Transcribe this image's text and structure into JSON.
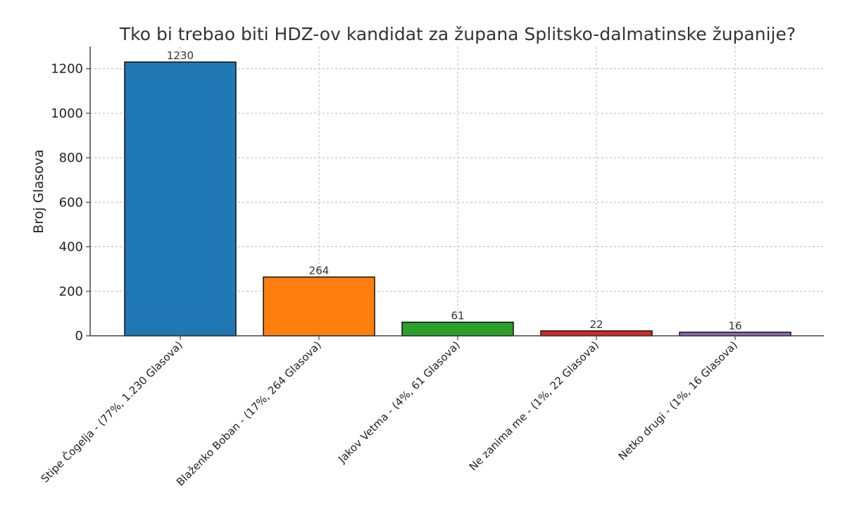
{
  "chart_data": {
    "type": "bar",
    "title": "Tko bi trebao biti HDZ-ov kandidat za župana Splitsko-dalmatinske županije?",
    "xlabel": "",
    "ylabel": "Broj Glasova",
    "categories": [
      "Stipe Čogelja - (77%, 1.230 Glasova)",
      "Blaženko Boban - (17%, 264 Glasova)",
      "Jakov Vetma - (4%, 61 Glasova)",
      "Ne zanima me - (1%, 22 Glasova)",
      "Netko drugi - (1%, 16 Glasova)"
    ],
    "values": [
      1230,
      264,
      61,
      22,
      16
    ],
    "value_labels": [
      "1230",
      "264",
      "61",
      "22",
      "16"
    ],
    "colors": [
      "#1f77b4",
      "#ff7f0e",
      "#2ca02c",
      "#d62728",
      "#9467bd"
    ],
    "ylim": [
      0,
      1300
    ],
    "yticks": [
      0,
      200,
      400,
      600,
      800,
      1000,
      1200
    ],
    "grid": true,
    "legend": "none"
  }
}
